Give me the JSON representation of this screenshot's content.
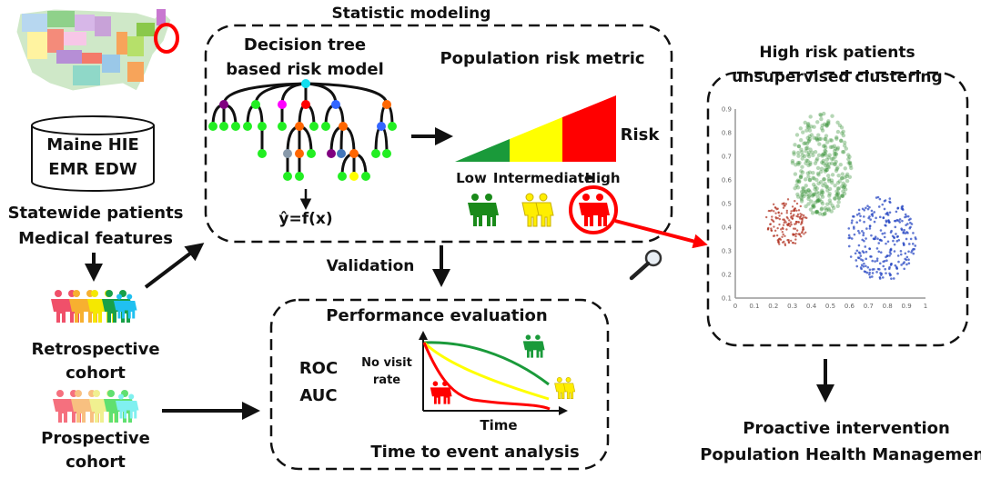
{
  "input": {
    "map_region_marker_color": "#ff0000",
    "database_lines": [
      "Maine HIE",
      "EMR EDW"
    ],
    "population_lines": [
      "Statewide patients",
      "Medical features"
    ],
    "retrospective_lines": [
      "Retrospective",
      "cohort"
    ],
    "prospective_lines": [
      "Prospective",
      "cohort"
    ]
  },
  "statistic_modeling": {
    "title": "Statistic modeling",
    "tree_title_lines": [
      "Decision tree",
      "based risk model"
    ],
    "tree_output": "ŷ=f(x)",
    "metric_title": "Population risk metric",
    "risk_label": "Risk",
    "levels": [
      {
        "label": "Low",
        "color": "#1a9a3a"
      },
      {
        "label": "Intermediate",
        "color": "#ffff00"
      },
      {
        "label": "High",
        "color": "#ff0000"
      }
    ]
  },
  "validation": {
    "label": "Validation"
  },
  "performance": {
    "title": "Performance evaluation",
    "metrics": [
      "ROC",
      "AUC"
    ],
    "y_axis_lines": [
      "No visit",
      "rate"
    ],
    "x_axis": "Time",
    "footer": "Time to event analysis"
  },
  "clustering": {
    "title_lines": [
      "High risk patients",
      "unsupervised clustering"
    ],
    "x_ticks": [
      "0",
      "0.1",
      "0.2",
      "0.3",
      "0.4",
      "0.5",
      "0.6",
      "0.7",
      "0.8",
      "0.9",
      "1"
    ],
    "y_ticks": [
      "0.1",
      "0.2",
      "0.3",
      "0.4",
      "0.5",
      "0.6",
      "0.7",
      "0.8",
      "0.9"
    ],
    "cluster_colors": [
      "#2e8b2e",
      "#b03020",
      "#2040c0"
    ]
  },
  "outcome": {
    "lines": [
      "Proactive intervention",
      "Population Health Management"
    ]
  }
}
